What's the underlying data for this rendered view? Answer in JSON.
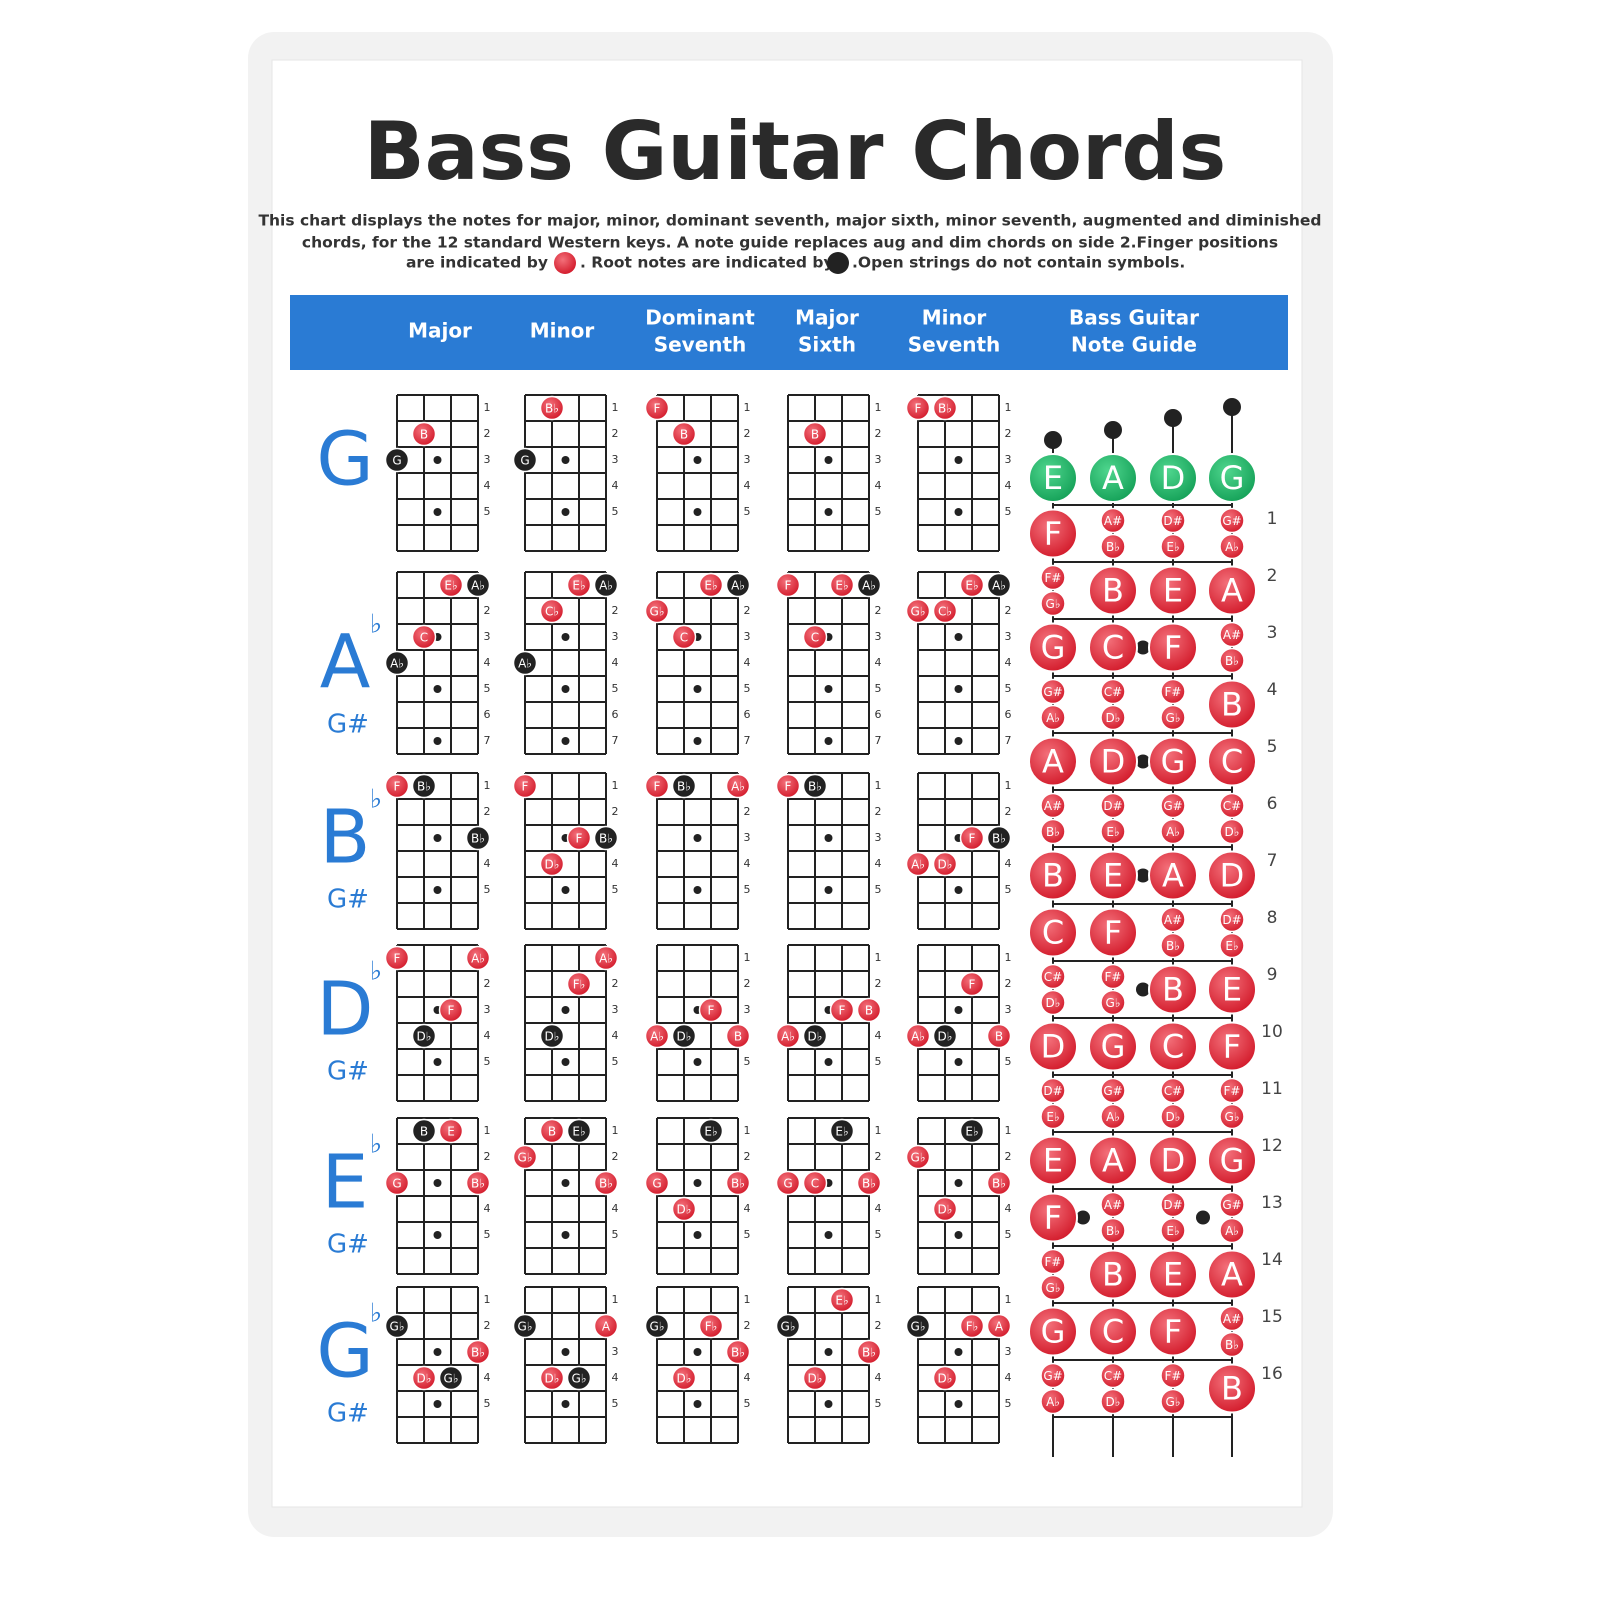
{
  "title": "Bass Guitar Chords",
  "description": [
    "This chart displays the notes for major, minor, dominant seventh, major sixth, minor seventh, augmented and diminished",
    "chords, for the 12 standard Western keys. A note guide replaces aug and dim chords on side 2.Finger positions",
    "are indicated by",
    ". Root notes are indicated by",
    ".Open strings do not contain symbols."
  ],
  "header": [
    [
      "Major"
    ],
    [
      "Minor"
    ],
    [
      "Dominant",
      "Seventh"
    ],
    [
      "Major",
      "Sixth"
    ],
    [
      "Minor",
      "Seventh"
    ],
    [
      "Bass  Guitar",
      "Note Guide"
    ]
  ],
  "rows": [
    {
      "key": "G",
      "frets": [
        "1",
        "2",
        "3",
        "4",
        "5"
      ],
      "chords": [
        [
          {
            "s": 1,
            "f": 2,
            "label": "B",
            "kind": "finger"
          },
          {
            "s": 0,
            "f": 3,
            "label": "G",
            "kind": "root"
          }
        ],
        [
          {
            "s": 1,
            "f": 1,
            "label": "B♭",
            "kind": "finger"
          },
          {
            "s": 0,
            "f": 3,
            "label": "G",
            "kind": "root"
          }
        ],
        [
          {
            "s": 0,
            "f": 1,
            "label": "F",
            "kind": "finger"
          },
          {
            "s": 1,
            "f": 2,
            "label": "B",
            "kind": "finger"
          }
        ],
        [
          {
            "s": 1,
            "f": 2,
            "label": "B",
            "kind": "finger"
          }
        ],
        [
          {
            "s": 0,
            "f": 1,
            "label": "F",
            "kind": "finger"
          },
          {
            "s": 1,
            "f": 1,
            "label": "B♭",
            "kind": "finger"
          }
        ]
      ]
    },
    {
      "key": "A",
      "flat": "♭",
      "alt": "G#",
      "frets": [
        "1",
        "2",
        "3",
        "4",
        "5",
        "6",
        "7"
      ],
      "chords": [
        [
          {
            "s": 2,
            "f": 1,
            "label": "E♭",
            "kind": "finger"
          },
          {
            "s": 3,
            "f": 1,
            "label": "A♭",
            "kind": "root"
          },
          {
            "s": 1,
            "f": 3,
            "label": "C",
            "kind": "finger"
          },
          {
            "s": 0,
            "f": 4,
            "label": "A♭",
            "kind": "root"
          }
        ],
        [
          {
            "s": 2,
            "f": 1,
            "label": "E♭",
            "kind": "finger"
          },
          {
            "s": 3,
            "f": 1,
            "label": "A♭",
            "kind": "root"
          },
          {
            "s": 1,
            "f": 2,
            "label": "C♭",
            "kind": "finger"
          },
          {
            "s": 0,
            "f": 4,
            "label": "A♭",
            "kind": "root"
          }
        ],
        [
          {
            "s": 2,
            "f": 1,
            "label": "E♭",
            "kind": "finger"
          },
          {
            "s": 3,
            "f": 1,
            "label": "A♭",
            "kind": "root"
          },
          {
            "s": 0,
            "f": 2,
            "label": "G♭",
            "kind": "finger"
          },
          {
            "s": 1,
            "f": 3,
            "label": "C",
            "kind": "finger"
          }
        ],
        [
          {
            "s": 0,
            "f": 1,
            "label": "F",
            "kind": "finger"
          },
          {
            "s": 2,
            "f": 1,
            "label": "E♭",
            "kind": "finger"
          },
          {
            "s": 3,
            "f": 1,
            "label": "A♭",
            "kind": "root"
          },
          {
            "s": 1,
            "f": 3,
            "label": "C",
            "kind": "finger"
          }
        ],
        [
          {
            "s": 2,
            "f": 1,
            "label": "E♭",
            "kind": "finger"
          },
          {
            "s": 3,
            "f": 1,
            "label": "A♭",
            "kind": "root"
          },
          {
            "s": 0,
            "f": 2,
            "label": "G♭",
            "kind": "finger"
          },
          {
            "s": 1,
            "f": 2,
            "label": "C♭",
            "kind": "finger"
          }
        ]
      ]
    },
    {
      "key": "B",
      "flat": "♭",
      "alt": "G#",
      "frets": [
        "1",
        "2",
        "3",
        "4",
        "5"
      ],
      "chords": [
        [
          {
            "s": 0,
            "f": 1,
            "label": "F",
            "kind": "finger"
          },
          {
            "s": 1,
            "f": 1,
            "label": "B♭",
            "kind": "root"
          },
          {
            "s": 3,
            "f": 3,
            "label": "B♭",
            "kind": "root"
          }
        ],
        [
          {
            "s": 0,
            "f": 1,
            "label": "F",
            "kind": "finger"
          },
          {
            "s": 2,
            "f": 3,
            "label": "F",
            "kind": "finger"
          },
          {
            "s": 3,
            "f": 3,
            "label": "B♭",
            "kind": "root"
          },
          {
            "s": 1,
            "f": 4,
            "label": "D♭",
            "kind": "finger"
          }
        ],
        [
          {
            "s": 0,
            "f": 1,
            "label": "F",
            "kind": "finger"
          },
          {
            "s": 1,
            "f": 1,
            "label": "B♭",
            "kind": "root"
          },
          {
            "s": 3,
            "f": 1,
            "label": "A♭",
            "kind": "finger"
          }
        ],
        [
          {
            "s": 0,
            "f": 1,
            "label": "F",
            "kind": "finger"
          },
          {
            "s": 1,
            "f": 1,
            "label": "B♭",
            "kind": "root"
          }
        ],
        [
          {
            "s": 2,
            "f": 3,
            "label": "F",
            "kind": "finger"
          },
          {
            "s": 3,
            "f": 3,
            "label": "B♭",
            "kind": "root"
          },
          {
            "s": 0,
            "f": 4,
            "label": "A♭",
            "kind": "finger"
          },
          {
            "s": 1,
            "f": 4,
            "label": "D♭",
            "kind": "finger"
          }
        ]
      ]
    },
    {
      "key": "D",
      "flat": "♭",
      "alt": "G#",
      "frets": [
        "1",
        "2",
        "3",
        "4",
        "5"
      ],
      "chords": [
        [
          {
            "s": 0,
            "f": 1,
            "label": "F",
            "kind": "finger"
          },
          {
            "s": 3,
            "f": 1,
            "label": "A♭",
            "kind": "finger"
          },
          {
            "s": 2,
            "f": 3,
            "label": "F",
            "kind": "finger"
          },
          {
            "s": 1,
            "f": 4,
            "label": "D♭",
            "kind": "root"
          }
        ],
        [
          {
            "s": 3,
            "f": 1,
            "label": "A♭",
            "kind": "finger"
          },
          {
            "s": 2,
            "f": 2,
            "label": "F♭",
            "kind": "finger"
          },
          {
            "s": 1,
            "f": 4,
            "label": "D♭",
            "kind": "root"
          }
        ],
        [
          {
            "s": 2,
            "f": 3,
            "label": "F",
            "kind": "finger"
          },
          {
            "s": 0,
            "f": 4,
            "label": "A♭",
            "kind": "finger"
          },
          {
            "s": 1,
            "f": 4,
            "label": "D♭",
            "kind": "root"
          },
          {
            "s": 3,
            "f": 4,
            "label": "B",
            "kind": "finger"
          }
        ],
        [
          {
            "s": 2,
            "f": 3,
            "label": "F",
            "kind": "finger"
          },
          {
            "s": 3,
            "f": 3,
            "label": "B",
            "kind": "finger"
          },
          {
            "s": 0,
            "f": 4,
            "label": "A♭",
            "kind": "finger"
          },
          {
            "s": 1,
            "f": 4,
            "label": "D♭",
            "kind": "root"
          }
        ],
        [
          {
            "s": 2,
            "f": 2,
            "label": "F",
            "kind": "finger"
          },
          {
            "s": 0,
            "f": 4,
            "label": "A♭",
            "kind": "finger"
          },
          {
            "s": 1,
            "f": 4,
            "label": "D♭",
            "kind": "root"
          },
          {
            "s": 3,
            "f": 4,
            "label": "B",
            "kind": "finger"
          }
        ]
      ]
    },
    {
      "key": "E",
      "flat": "♭",
      "alt": "G#",
      "frets": [
        "1",
        "2",
        "3",
        "4",
        "5"
      ],
      "chords": [
        [
          {
            "s": 1,
            "f": 1,
            "label": "B",
            "kind": "root"
          },
          {
            "s": 2,
            "f": 1,
            "label": "E",
            "kind": "finger"
          },
          {
            "s": 0,
            "f": 3,
            "label": "G",
            "kind": "finger"
          },
          {
            "s": 3,
            "f": 3,
            "label": "B♭",
            "kind": "finger"
          }
        ],
        [
          {
            "s": 1,
            "f": 1,
            "label": "B",
            "kind": "finger"
          },
          {
            "s": 2,
            "f": 1,
            "label": "E♭",
            "kind": "root"
          },
          {
            "s": 0,
            "f": 2,
            "label": "G♭",
            "kind": "finger"
          },
          {
            "s": 3,
            "f": 3,
            "label": "B♭",
            "kind": "finger"
          }
        ],
        [
          {
            "s": 2,
            "f": 1,
            "label": "E♭",
            "kind": "root"
          },
          {
            "s": 0,
            "f": 3,
            "label": "G",
            "kind": "finger"
          },
          {
            "s": 3,
            "f": 3,
            "label": "B♭",
            "kind": "finger"
          },
          {
            "s": 1,
            "f": 4,
            "label": "D♭",
            "kind": "finger"
          }
        ],
        [
          {
            "s": 2,
            "f": 1,
            "label": "E♭",
            "kind": "root"
          },
          {
            "s": 0,
            "f": 3,
            "label": "G",
            "kind": "finger"
          },
          {
            "s": 1,
            "f": 3,
            "label": "C",
            "kind": "finger"
          },
          {
            "s": 3,
            "f": 3,
            "label": "B♭",
            "kind": "finger"
          }
        ],
        [
          {
            "s": 2,
            "f": 1,
            "label": "E♭",
            "kind": "root"
          },
          {
            "s": 0,
            "f": 2,
            "label": "G♭",
            "kind": "finger"
          },
          {
            "s": 3,
            "f": 3,
            "label": "B♭",
            "kind": "finger"
          },
          {
            "s": 1,
            "f": 4,
            "label": "D♭",
            "kind": "finger"
          }
        ]
      ]
    },
    {
      "key": "G",
      "flat": "♭",
      "alt": "G#",
      "frets": [
        "1",
        "2",
        "3",
        "4",
        "5"
      ],
      "chords": [
        [
          {
            "s": 0,
            "f": 2,
            "label": "G♭",
            "kind": "root"
          },
          {
            "s": 3,
            "f": 3,
            "label": "B♭",
            "kind": "finger"
          },
          {
            "s": 1,
            "f": 4,
            "label": "D♭",
            "kind": "finger"
          },
          {
            "s": 2,
            "f": 4,
            "label": "G♭",
            "kind": "root"
          }
        ],
        [
          {
            "s": 0,
            "f": 2,
            "label": "G♭",
            "kind": "root"
          },
          {
            "s": 3,
            "f": 2,
            "label": "A",
            "kind": "finger"
          },
          {
            "s": 1,
            "f": 4,
            "label": "D♭",
            "kind": "finger"
          },
          {
            "s": 2,
            "f": 4,
            "label": "G♭",
            "kind": "root"
          }
        ],
        [
          {
            "s": 0,
            "f": 2,
            "label": "G♭",
            "kind": "root"
          },
          {
            "s": 2,
            "f": 2,
            "label": "F♭",
            "kind": "finger"
          },
          {
            "s": 3,
            "f": 3,
            "label": "B♭",
            "kind": "finger"
          },
          {
            "s": 1,
            "f": 4,
            "label": "D♭",
            "kind": "finger"
          }
        ],
        [
          {
            "s": 2,
            "f": 1,
            "label": "E♭",
            "kind": "finger"
          },
          {
            "s": 0,
            "f": 2,
            "label": "G♭",
            "kind": "root"
          },
          {
            "s": 3,
            "f": 3,
            "label": "B♭",
            "kind": "finger"
          },
          {
            "s": 1,
            "f": 4,
            "label": "D♭",
            "kind": "finger"
          }
        ],
        [
          {
            "s": 0,
            "f": 2,
            "label": "G♭",
            "kind": "root"
          },
          {
            "s": 2,
            "f": 2,
            "label": "F♭",
            "kind": "finger"
          },
          {
            "s": 3,
            "f": 2,
            "label": "A",
            "kind": "finger"
          },
          {
            "s": 1,
            "f": 4,
            "label": "D♭",
            "kind": "finger"
          }
        ]
      ]
    }
  ],
  "note_guide": {
    "open_strings": [
      "E",
      "A",
      "D",
      "G"
    ],
    "fret_numbers": [
      "1",
      "2",
      "3",
      "4",
      "5",
      "6",
      "7",
      "8",
      "9",
      "10",
      "11",
      "12",
      "13",
      "14",
      "15",
      "16"
    ],
    "notes": [
      [
        "F",
        [
          "F#",
          "G♭"
        ],
        "G",
        [
          "G#",
          "A♭"
        ],
        "A",
        [
          "A#",
          "B♭"
        ],
        "B",
        "C",
        [
          "C#",
          "D♭"
        ],
        "D",
        [
          "D#",
          "E♭"
        ],
        "E",
        "F",
        [
          "F#",
          "G♭"
        ],
        "G",
        [
          "G#",
          "A♭"
        ]
      ],
      [
        [
          "A#",
          "B♭"
        ],
        "B",
        "C",
        [
          "C#",
          "D♭"
        ],
        "D",
        [
          "D#",
          "E♭"
        ],
        "E",
        "F",
        [
          "F#",
          "G♭"
        ],
        "G",
        [
          "G#",
          "A♭"
        ],
        "A",
        [
          "A#",
          "B♭"
        ],
        "B",
        "C",
        [
          "C#",
          "D♭"
        ]
      ],
      [
        [
          "D#",
          "E♭"
        ],
        "E",
        "F",
        [
          "F#",
          "G♭"
        ],
        "G",
        [
          "G#",
          "A♭"
        ],
        "A",
        [
          "A#",
          "B♭"
        ],
        "B",
        "C",
        [
          "C#",
          "D♭"
        ],
        "D",
        [
          "D#",
          "E♭"
        ],
        "E",
        "F",
        [
          "F#",
          "G♭"
        ]
      ],
      [
        [
          "G#",
          "A♭"
        ],
        "A",
        [
          "A#",
          "B♭"
        ],
        "B",
        "C",
        [
          "C#",
          "D♭"
        ],
        "D",
        [
          "D#",
          "E♭"
        ],
        "E",
        "F",
        [
          "F#",
          "G♭"
        ],
        "G",
        [
          "G#",
          "A♭"
        ],
        "A",
        [
          "A#",
          "B♭"
        ],
        "B"
      ]
    ]
  }
}
